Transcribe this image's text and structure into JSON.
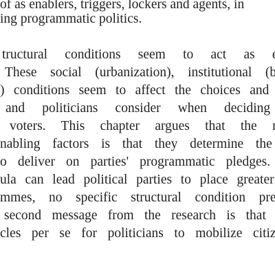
{
  "document": {
    "paragraph1": [
      "of as enablers, triggers, lockers and agents, in",
      "ing programmatic politics."
    ],
    "paragraph2": [
      "tructural  conditions  seem  to  act  as  ena",
      "These social (urbanization), institutional (bure",
      ") conditions seem to affect the choices and in",
      "and politicians consider when deciding o",
      "voters. This chapter argues that the most",
      "nabling factors is that they determine the r",
      "o deliver on parties' programmatic pledges. F",
      "ula can lead political parties to place greater c",
      "mmes, no specific structural condition preve",
      "second message from the research is that the",
      "cles per se for politicians to mobilize citizen"
    ]
  }
}
